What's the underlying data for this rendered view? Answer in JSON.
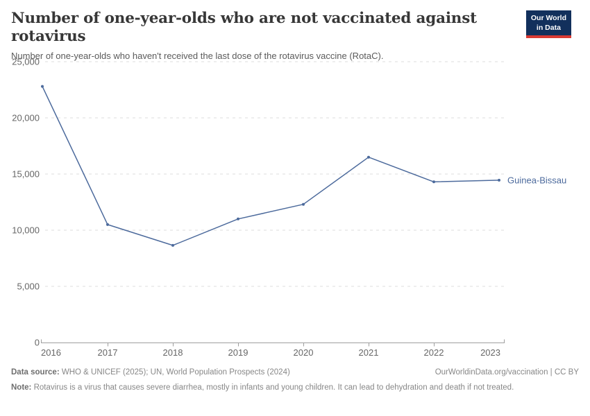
{
  "header": {
    "title": "Number of one-year-olds who are not vaccinated against rotavirus",
    "subtitle": "Number of one-year-olds who haven't received the last dose of the rotavirus vaccine (RotaC).",
    "logo": {
      "line1": "Our World",
      "line2": "in Data",
      "bg_color": "#12305c",
      "accent_color": "#d93a33"
    }
  },
  "chart_data": {
    "type": "line",
    "title": "Number of one-year-olds who are not vaccinated against rotavirus",
    "x": [
      2016,
      2017,
      2018,
      2019,
      2020,
      2021,
      2022,
      2023
    ],
    "series": [
      {
        "name": "Guinea-Bissau",
        "color": "#4c6a9c",
        "values": [
          22800,
          10500,
          8650,
          11000,
          12300,
          16500,
          14300,
          14450
        ]
      }
    ],
    "xlabel": "",
    "ylabel": "",
    "ylim": [
      0,
      25000
    ],
    "yticks": [
      0,
      5000,
      10000,
      15000,
      20000,
      25000
    ],
    "grid": true,
    "gridline_color": "#dcdcdc",
    "axis_color": "#9e9e9e",
    "tick_label_color": "#666666",
    "legend_position": "end-of-line"
  },
  "footer": {
    "data_source_label": "Data source:",
    "data_source_text": " WHO & UNICEF (2025); UN, World Population Prospects (2024)",
    "link": "OurWorldinData.org/vaccination | CC BY",
    "note_label": "Note:",
    "note_text": " Rotavirus is a virus that causes severe diarrhea, mostly in infants and young children. It can lead to dehydration and death if not treated."
  }
}
